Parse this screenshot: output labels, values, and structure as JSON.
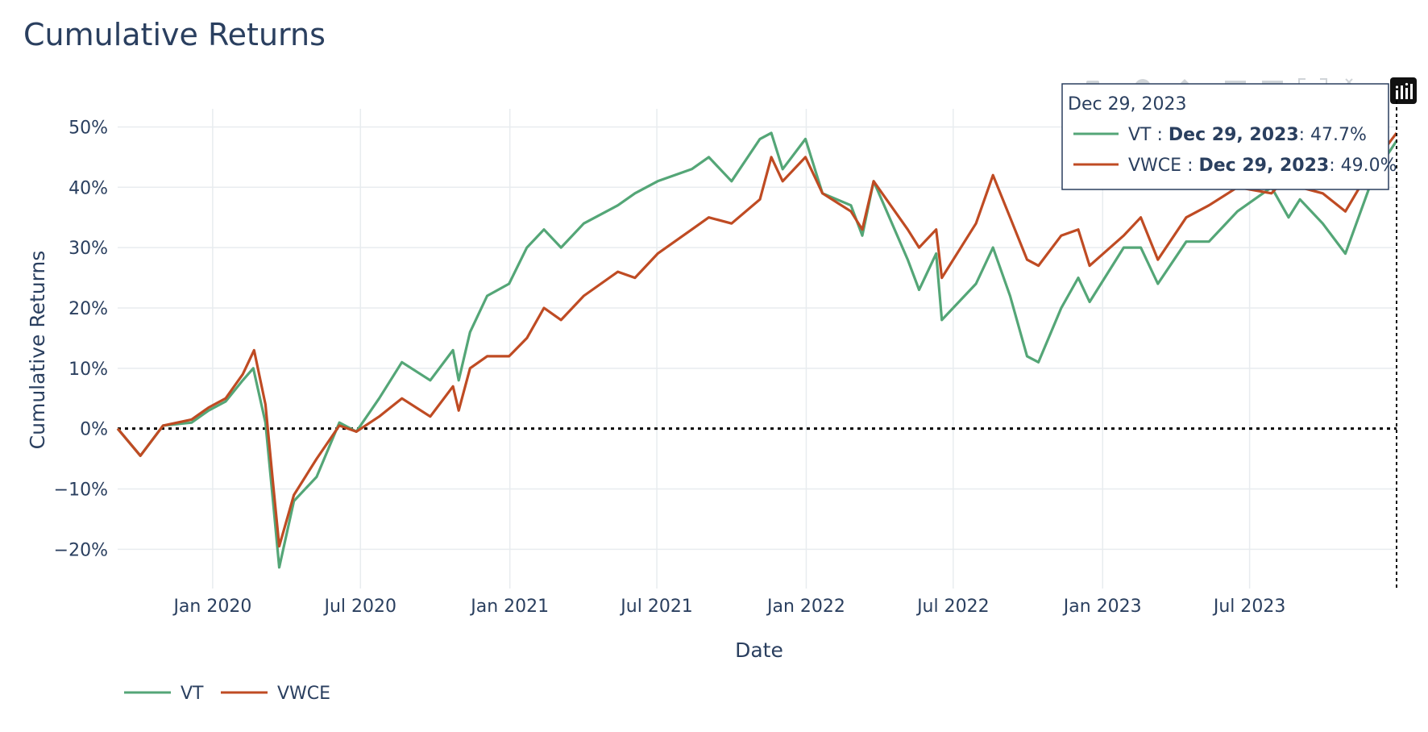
{
  "chart_data": {
    "type": "line",
    "title": "Cumulative Returns",
    "xlabel": "Date",
    "ylabel": "Cumulative Returns",
    "x_start": "2019-09-06",
    "x_end": "2023-12-29",
    "xlim": [
      "2019-09-06",
      "2023-12-29"
    ],
    "ylim": [
      -0.265,
      0.53
    ],
    "y_tick_values": [
      -0.2,
      -0.1,
      0,
      0.1,
      0.2,
      0.3,
      0.4,
      0.5
    ],
    "y_tick_labels": [
      "−20%",
      "−10%",
      "0%",
      "10%",
      "20%",
      "30%",
      "40%",
      "50%"
    ],
    "x_tick_values": [
      "2020-01-01",
      "2020-07-01",
      "2021-01-01",
      "2021-07-01",
      "2022-01-01",
      "2022-07-01",
      "2023-01-01",
      "2023-07-01"
    ],
    "x_tick_labels": [
      "Jan 2020",
      "Jul 2020",
      "Jan 2021",
      "Jul 2021",
      "Jan 2022",
      "Jul 2022",
      "Jan 2023",
      "Jul 2023"
    ],
    "reference_line": {
      "y": 0,
      "style": "dotted"
    },
    "grid": true,
    "legend_position": "bottom-left",
    "series": [
      {
        "name": "VT",
        "color": "#54a677",
        "points": [
          [
            "2019-09-06",
            0.0
          ],
          [
            "2019-10-04",
            -0.045
          ],
          [
            "2019-11-01",
            0.005
          ],
          [
            "2019-12-06",
            0.01
          ],
          [
            "2019-12-27",
            0.03
          ],
          [
            "2020-01-17",
            0.045
          ],
          [
            "2020-02-07",
            0.08
          ],
          [
            "2020-02-20",
            0.1
          ],
          [
            "2020-03-06",
            0.01
          ],
          [
            "2020-03-16",
            -0.13
          ],
          [
            "2020-03-23",
            -0.23
          ],
          [
            "2020-04-10",
            -0.12
          ],
          [
            "2020-05-08",
            -0.08
          ],
          [
            "2020-06-05",
            0.01
          ],
          [
            "2020-06-26",
            -0.005
          ],
          [
            "2020-07-24",
            0.05
          ],
          [
            "2020-08-21",
            0.11
          ],
          [
            "2020-09-25",
            0.08
          ],
          [
            "2020-10-23",
            0.13
          ],
          [
            "2020-10-30",
            0.08
          ],
          [
            "2020-11-13",
            0.16
          ],
          [
            "2020-12-04",
            0.22
          ],
          [
            "2020-12-31",
            0.24
          ],
          [
            "2021-01-22",
            0.3
          ],
          [
            "2021-02-12",
            0.33
          ],
          [
            "2021-03-05",
            0.3
          ],
          [
            "2021-04-02",
            0.34
          ],
          [
            "2021-05-14",
            0.37
          ],
          [
            "2021-06-04",
            0.39
          ],
          [
            "2021-07-02",
            0.41
          ],
          [
            "2021-08-13",
            0.43
          ],
          [
            "2021-09-03",
            0.45
          ],
          [
            "2021-10-01",
            0.41
          ],
          [
            "2021-11-05",
            0.48
          ],
          [
            "2021-11-19",
            0.49
          ],
          [
            "2021-12-03",
            0.43
          ],
          [
            "2021-12-31",
            0.48
          ],
          [
            "2022-01-21",
            0.39
          ],
          [
            "2022-02-25",
            0.37
          ],
          [
            "2022-03-11",
            0.32
          ],
          [
            "2022-03-25",
            0.41
          ],
          [
            "2022-05-06",
            0.28
          ],
          [
            "2022-05-20",
            0.23
          ],
          [
            "2022-06-10",
            0.29
          ],
          [
            "2022-06-17",
            0.18
          ],
          [
            "2022-07-29",
            0.24
          ],
          [
            "2022-08-19",
            0.3
          ],
          [
            "2022-09-09",
            0.22
          ],
          [
            "2022-09-30",
            0.12
          ],
          [
            "2022-10-14",
            0.11
          ],
          [
            "2022-11-11",
            0.2
          ],
          [
            "2022-12-02",
            0.25
          ],
          [
            "2022-12-16",
            0.21
          ],
          [
            "2023-01-27",
            0.3
          ],
          [
            "2023-02-17",
            0.3
          ],
          [
            "2023-03-10",
            0.24
          ],
          [
            "2023-04-14",
            0.31
          ],
          [
            "2023-05-12",
            0.31
          ],
          [
            "2023-06-16",
            0.36
          ],
          [
            "2023-07-28",
            0.4
          ],
          [
            "2023-08-18",
            0.35
          ],
          [
            "2023-09-01",
            0.38
          ],
          [
            "2023-09-29",
            0.34
          ],
          [
            "2023-10-27",
            0.29
          ],
          [
            "2023-12-01",
            0.42
          ],
          [
            "2023-12-29",
            0.477
          ]
        ]
      },
      {
        "name": "VWCE",
        "color": "#bf4b23",
        "points": [
          [
            "2019-09-06",
            0.0
          ],
          [
            "2019-10-04",
            -0.045
          ],
          [
            "2019-11-01",
            0.005
          ],
          [
            "2019-12-06",
            0.015
          ],
          [
            "2019-12-27",
            0.035
          ],
          [
            "2020-01-17",
            0.05
          ],
          [
            "2020-02-07",
            0.09
          ],
          [
            "2020-02-21",
            0.13
          ],
          [
            "2020-03-06",
            0.04
          ],
          [
            "2020-03-16",
            -0.1
          ],
          [
            "2020-03-23",
            -0.195
          ],
          [
            "2020-04-10",
            -0.11
          ],
          [
            "2020-05-08",
            -0.05
          ],
          [
            "2020-06-05",
            0.005
          ],
          [
            "2020-06-26",
            -0.005
          ],
          [
            "2020-07-24",
            0.02
          ],
          [
            "2020-08-21",
            0.05
          ],
          [
            "2020-09-25",
            0.02
          ],
          [
            "2020-10-23",
            0.07
          ],
          [
            "2020-10-30",
            0.03
          ],
          [
            "2020-11-13",
            0.1
          ],
          [
            "2020-12-04",
            0.12
          ],
          [
            "2020-12-31",
            0.12
          ],
          [
            "2021-01-22",
            0.15
          ],
          [
            "2021-02-12",
            0.2
          ],
          [
            "2021-03-05",
            0.18
          ],
          [
            "2021-04-02",
            0.22
          ],
          [
            "2021-05-14",
            0.26
          ],
          [
            "2021-06-04",
            0.25
          ],
          [
            "2021-07-02",
            0.29
          ],
          [
            "2021-08-13",
            0.33
          ],
          [
            "2021-09-03",
            0.35
          ],
          [
            "2021-10-01",
            0.34
          ],
          [
            "2021-11-05",
            0.38
          ],
          [
            "2021-11-19",
            0.45
          ],
          [
            "2021-12-03",
            0.41
          ],
          [
            "2021-12-31",
            0.45
          ],
          [
            "2022-01-21",
            0.39
          ],
          [
            "2022-02-25",
            0.36
          ],
          [
            "2022-03-11",
            0.33
          ],
          [
            "2022-03-25",
            0.41
          ],
          [
            "2022-05-06",
            0.33
          ],
          [
            "2022-05-20",
            0.3
          ],
          [
            "2022-06-10",
            0.33
          ],
          [
            "2022-06-17",
            0.25
          ],
          [
            "2022-07-29",
            0.34
          ],
          [
            "2022-08-19",
            0.42
          ],
          [
            "2022-09-09",
            0.35
          ],
          [
            "2022-09-30",
            0.28
          ],
          [
            "2022-10-14",
            0.27
          ],
          [
            "2022-11-11",
            0.32
          ],
          [
            "2022-12-02",
            0.33
          ],
          [
            "2022-12-16",
            0.27
          ],
          [
            "2023-01-27",
            0.32
          ],
          [
            "2023-02-17",
            0.35
          ],
          [
            "2023-03-10",
            0.28
          ],
          [
            "2023-04-14",
            0.35
          ],
          [
            "2023-05-12",
            0.37
          ],
          [
            "2023-06-16",
            0.4
          ],
          [
            "2023-07-28",
            0.39
          ],
          [
            "2023-08-18",
            0.42
          ],
          [
            "2023-09-01",
            0.4
          ],
          [
            "2023-09-29",
            0.39
          ],
          [
            "2023-10-27",
            0.36
          ],
          [
            "2023-12-01",
            0.44
          ],
          [
            "2023-12-29",
            0.49
          ]
        ]
      }
    ],
    "hover": {
      "date": "Dec 29, 2023",
      "items": [
        {
          "name": "VT",
          "sep": " : ",
          "date": "Dec 29, 2023",
          "value": ": 47.7%",
          "color": "#54a677"
        },
        {
          "name": "VWCE",
          "sep": " : ",
          "date": "Dec 29, 2023",
          "value": ": 49.0%",
          "color": "#bf4b23"
        }
      ]
    }
  },
  "icons": {
    "modebar": [
      "camera-icon",
      "zoom-icon",
      "pan-icon",
      "zoom-in-icon",
      "zoom-out-icon",
      "autoscale-icon",
      "reset-icon"
    ],
    "logo": "plotly-logo-icon"
  }
}
